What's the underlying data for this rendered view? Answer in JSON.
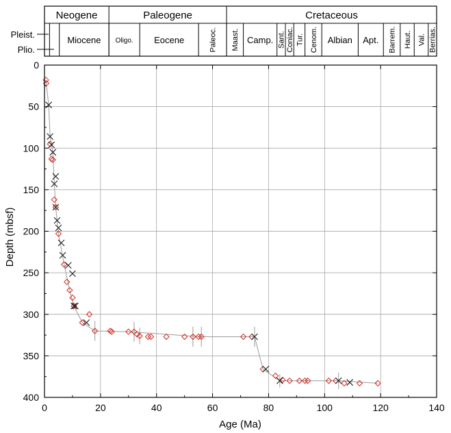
{
  "chart_data": {
    "type": "scatter",
    "title": "",
    "xlabel": "Age (Ma)",
    "ylabel": "Depth (mbsf)",
    "xlim": [
      0,
      140
    ],
    "ylim": [
      400,
      0
    ],
    "xticks": [
      "0",
      "20",
      "40",
      "60",
      "80",
      "100",
      "120",
      "140"
    ],
    "yticks": [
      "0",
      "50",
      "100",
      "150",
      "200",
      "250",
      "300",
      "350",
      "400"
    ],
    "grid": true,
    "legend": "none",
    "colors": {
      "diamond": "#d42a20",
      "cross": "#1a1a1a",
      "line": "#9a9a9a",
      "grid": "#9a9a9a"
    },
    "timescale": {
      "periods": [
        {
          "label": "Neogene",
          "from": 0,
          "to": 23
        },
        {
          "label": "Paleogene",
          "from": 23,
          "to": 65
        },
        {
          "label": "Cretaceous",
          "from": 65,
          "to": 140
        }
      ],
      "epochs": [
        {
          "label": "Pleist.",
          "from": 0,
          "to": 1.8
        },
        {
          "label": "Plio.",
          "from": 1.8,
          "to": 5.3
        },
        {
          "label": "Miocene",
          "from": 5.3,
          "to": 23
        },
        {
          "label": "Oligo.",
          "from": 23,
          "to": 34
        },
        {
          "label": "Eocene",
          "from": 34,
          "to": 55
        },
        {
          "label": "Paleoc.",
          "from": 55,
          "to": 65
        },
        {
          "label": "Maast.",
          "from": 65,
          "to": 71
        },
        {
          "label": "Camp.",
          "from": 71,
          "to": 83
        },
        {
          "label": "Sant.",
          "from": 83,
          "to": 86
        },
        {
          "label": "Coniac.",
          "from": 86,
          "to": 89
        },
        {
          "label": "Tur.",
          "from": 89,
          "to": 93
        },
        {
          "label": "Cenom.",
          "from": 93,
          "to": 99
        },
        {
          "label": "Albian",
          "from": 99,
          "to": 112
        },
        {
          "label": "Apt.",
          "from": 112,
          "to": 121
        },
        {
          "label": "Barrem.",
          "from": 121,
          "to": 127
        },
        {
          "label": "Haut.",
          "from": 127,
          "to": 132
        },
        {
          "label": "Val.",
          "from": 132,
          "to": 137
        },
        {
          "label": "Berrias.",
          "from": 137,
          "to": 140
        }
      ]
    },
    "series": [
      {
        "marker": "diamond",
        "points": [
          [
            0.5,
            18
          ],
          [
            0.6,
            22
          ],
          [
            2,
            95
          ],
          [
            2.5,
            113
          ],
          [
            3,
            114
          ],
          [
            3.5,
            162
          ],
          [
            4,
            171
          ],
          [
            5,
            203
          ],
          [
            7,
            240
          ],
          [
            8,
            261
          ],
          [
            9,
            271
          ],
          [
            10,
            280
          ],
          [
            10.5,
            290
          ],
          [
            13.5,
            310
          ],
          [
            16,
            300
          ],
          [
            18,
            320
          ],
          [
            23.5,
            320
          ],
          [
            24,
            321
          ],
          [
            30,
            321
          ],
          [
            32,
            321
          ],
          [
            33,
            324
          ],
          [
            34,
            326
          ],
          [
            37,
            327
          ],
          [
            38,
            327
          ],
          [
            43.5,
            327
          ],
          [
            50,
            327
          ],
          [
            53,
            327
          ],
          [
            55,
            327
          ],
          [
            56,
            327
          ],
          [
            71,
            327
          ],
          [
            74,
            327
          ],
          [
            78,
            366
          ],
          [
            82.5,
            374
          ],
          [
            85,
            379
          ],
          [
            87.5,
            380
          ],
          [
            91,
            380
          ],
          [
            93,
            380
          ],
          [
            94,
            380
          ],
          [
            101.5,
            380
          ],
          [
            104,
            380
          ],
          [
            107,
            383
          ],
          [
            112.5,
            383
          ],
          [
            119,
            383
          ]
        ]
      },
      {
        "marker": "cross",
        "points": [
          [
            1.5,
            48
          ],
          [
            2,
            86
          ],
          [
            2.5,
            96
          ],
          [
            3,
            105
          ],
          [
            3.5,
            143
          ],
          [
            4,
            134
          ],
          [
            4,
            171
          ],
          [
            4.5,
            187
          ],
          [
            5,
            196
          ],
          [
            6,
            214
          ],
          [
            6.5,
            229
          ],
          [
            8.5,
            241
          ],
          [
            10,
            251
          ],
          [
            10.5,
            290
          ],
          [
            11,
            290
          ],
          [
            15,
            310
          ],
          [
            75,
            327
          ],
          [
            79,
            366
          ],
          [
            84,
            380
          ],
          [
            105,
            380
          ],
          [
            109,
            382
          ]
        ]
      }
    ],
    "trend_line": [
      [
        0.5,
        18
      ],
      [
        1.5,
        48
      ],
      [
        2,
        86
      ],
      [
        3,
        105
      ],
      [
        3.5,
        143
      ],
      [
        4,
        171
      ],
      [
        5,
        203
      ],
      [
        7,
        240
      ],
      [
        9,
        271
      ],
      [
        10.5,
        290
      ],
      [
        13.5,
        310
      ],
      [
        18,
        320
      ],
      [
        30,
        321
      ],
      [
        56,
        327
      ],
      [
        75,
        327
      ],
      [
        78,
        366
      ],
      [
        84,
        380
      ],
      [
        105,
        380
      ],
      [
        119,
        383
      ]
    ],
    "error_bars": [
      {
        "x": 18,
        "y": 320,
        "dy": 12
      },
      {
        "x": 32,
        "y": 321,
        "dy": 12
      },
      {
        "x": 34,
        "y": 326,
        "dy": 10
      },
      {
        "x": 53,
        "y": 327,
        "dy": 12
      },
      {
        "x": 56,
        "y": 327,
        "dy": 12
      },
      {
        "x": 75,
        "y": 327,
        "dy": 12
      },
      {
        "x": 84,
        "y": 380,
        "dy": 8
      },
      {
        "x": 105,
        "y": 380,
        "dy": 10
      }
    ]
  }
}
